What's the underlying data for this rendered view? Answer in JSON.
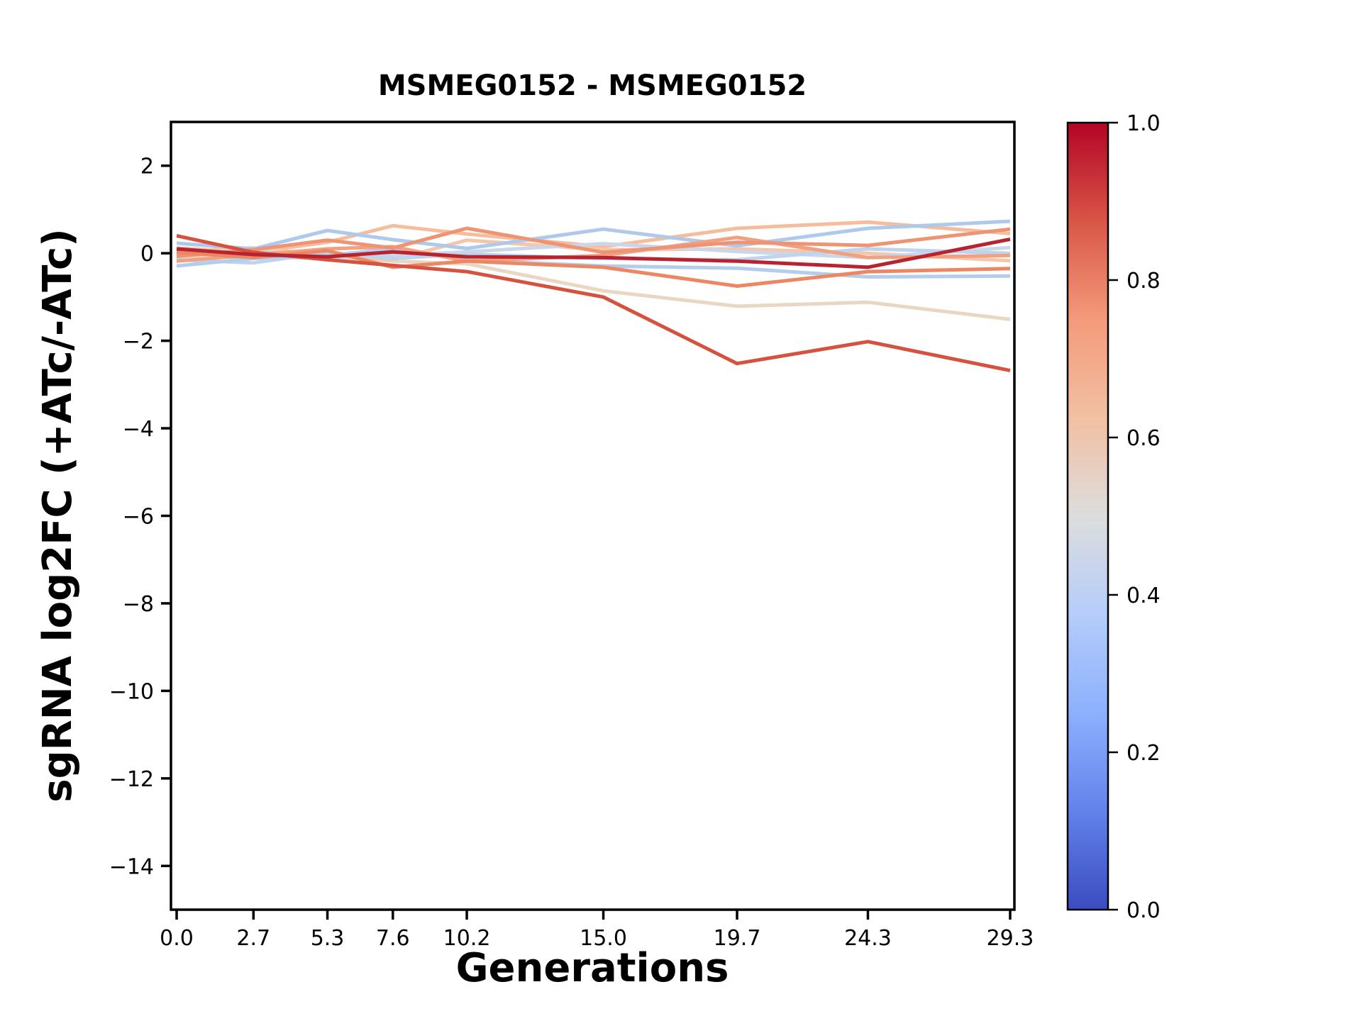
{
  "title": "MSMEG0152 - MSMEG0152",
  "chart_data": {
    "type": "line",
    "title": "MSMEG0152 - MSMEG0152",
    "xlabel": "Generations",
    "ylabel": "sgRNA log2FC (+ATc/-ATc)",
    "x": [
      0.0,
      2.7,
      5.3,
      7.6,
      10.2,
      15.0,
      19.7,
      24.3,
      29.3
    ],
    "xtick_labels": [
      "0.0",
      "2.7",
      "5.3",
      "7.6",
      "10.2",
      "15.0",
      "19.7",
      "24.3",
      "29.3"
    ],
    "yticks": [
      2,
      0,
      -2,
      -4,
      -6,
      -8,
      -10,
      -12,
      -14
    ],
    "xlim": [
      -0.2,
      29.45
    ],
    "ylim": [
      -15,
      3
    ],
    "grid": false,
    "legend_position": "none",
    "series": [
      {
        "color": "#b8232f",
        "values": [
          0.1,
          -0.03,
          -0.08,
          0.03,
          -0.08,
          -0.1,
          -0.18,
          -0.32,
          0.32
        ]
      },
      {
        "color": "#d5523f",
        "values": [
          0.4,
          0.02,
          -0.15,
          -0.28,
          -0.42,
          -1.0,
          -2.52,
          -2.02,
          -2.68
        ]
      },
      {
        "color": "#ead7c3",
        "values": [
          -0.1,
          -0.08,
          -0.12,
          -0.18,
          -0.24,
          -0.86,
          -1.21,
          -1.12,
          -1.51
        ]
      },
      {
        "color": "#ec8764",
        "values": [
          0.02,
          -0.1,
          0.06,
          -0.32,
          -0.18,
          -0.32,
          -0.75,
          -0.42,
          -0.35
        ]
      },
      {
        "color": "#ee9373",
        "values": [
          -0.07,
          0.08,
          0.3,
          0.12,
          0.57,
          0.02,
          0.25,
          0.18,
          0.55
        ]
      },
      {
        "color": "#f0a181",
        "values": [
          -0.18,
          -0.04,
          0.1,
          0.15,
          -0.18,
          -0.05,
          0.36,
          -0.1,
          -0.05
        ]
      },
      {
        "color": "#f5bd9e",
        "values": [
          0.12,
          0.02,
          0.25,
          0.63,
          0.44,
          0.15,
          0.57,
          0.71,
          0.45
        ]
      },
      {
        "color": "#f4c7ac",
        "values": [
          0.05,
          0.12,
          -0.05,
          -0.15,
          0.3,
          0.08,
          0.1,
          0.0,
          -0.17
        ]
      },
      {
        "color": "#aec9ea",
        "values": [
          0.23,
          0.1,
          0.52,
          0.31,
          0.11,
          0.55,
          0.17,
          0.57,
          0.73
        ]
      },
      {
        "color": "#b4cdec",
        "values": [
          -0.29,
          -0.12,
          -0.05,
          0.1,
          -0.16,
          -0.29,
          -0.34,
          -0.54,
          -0.52
        ]
      },
      {
        "color": "#cbd7e8",
        "values": [
          0.0,
          0.06,
          -0.1,
          -0.05,
          0.03,
          0.22,
          0.04,
          -0.1,
          0.13
        ]
      },
      {
        "color": "#bed3ee",
        "values": [
          -0.15,
          -0.22,
          0.02,
          -0.12,
          -0.02,
          -0.12,
          -0.15,
          0.1,
          0.0
        ]
      }
    ],
    "colorbar": {
      "range": [
        0.0,
        1.0
      ],
      "ticks": [
        "1.0",
        "0.8",
        "0.6",
        "0.4",
        "0.2",
        "0.0"
      ],
      "colormap": "coolwarm",
      "gradient_stops": [
        {
          "at": 0.0,
          "color": "#3b4cc0"
        },
        {
          "at": 0.125,
          "color": "#6282ea"
        },
        {
          "at": 0.25,
          "color": "#8db0fe"
        },
        {
          "at": 0.375,
          "color": "#b5cdfa"
        },
        {
          "at": 0.5,
          "color": "#dddddd"
        },
        {
          "at": 0.625,
          "color": "#f2c0a2"
        },
        {
          "at": 0.75,
          "color": "#f49a7b"
        },
        {
          "at": 0.875,
          "color": "#d85646"
        },
        {
          "at": 1.0,
          "color": "#b40426"
        }
      ]
    }
  }
}
